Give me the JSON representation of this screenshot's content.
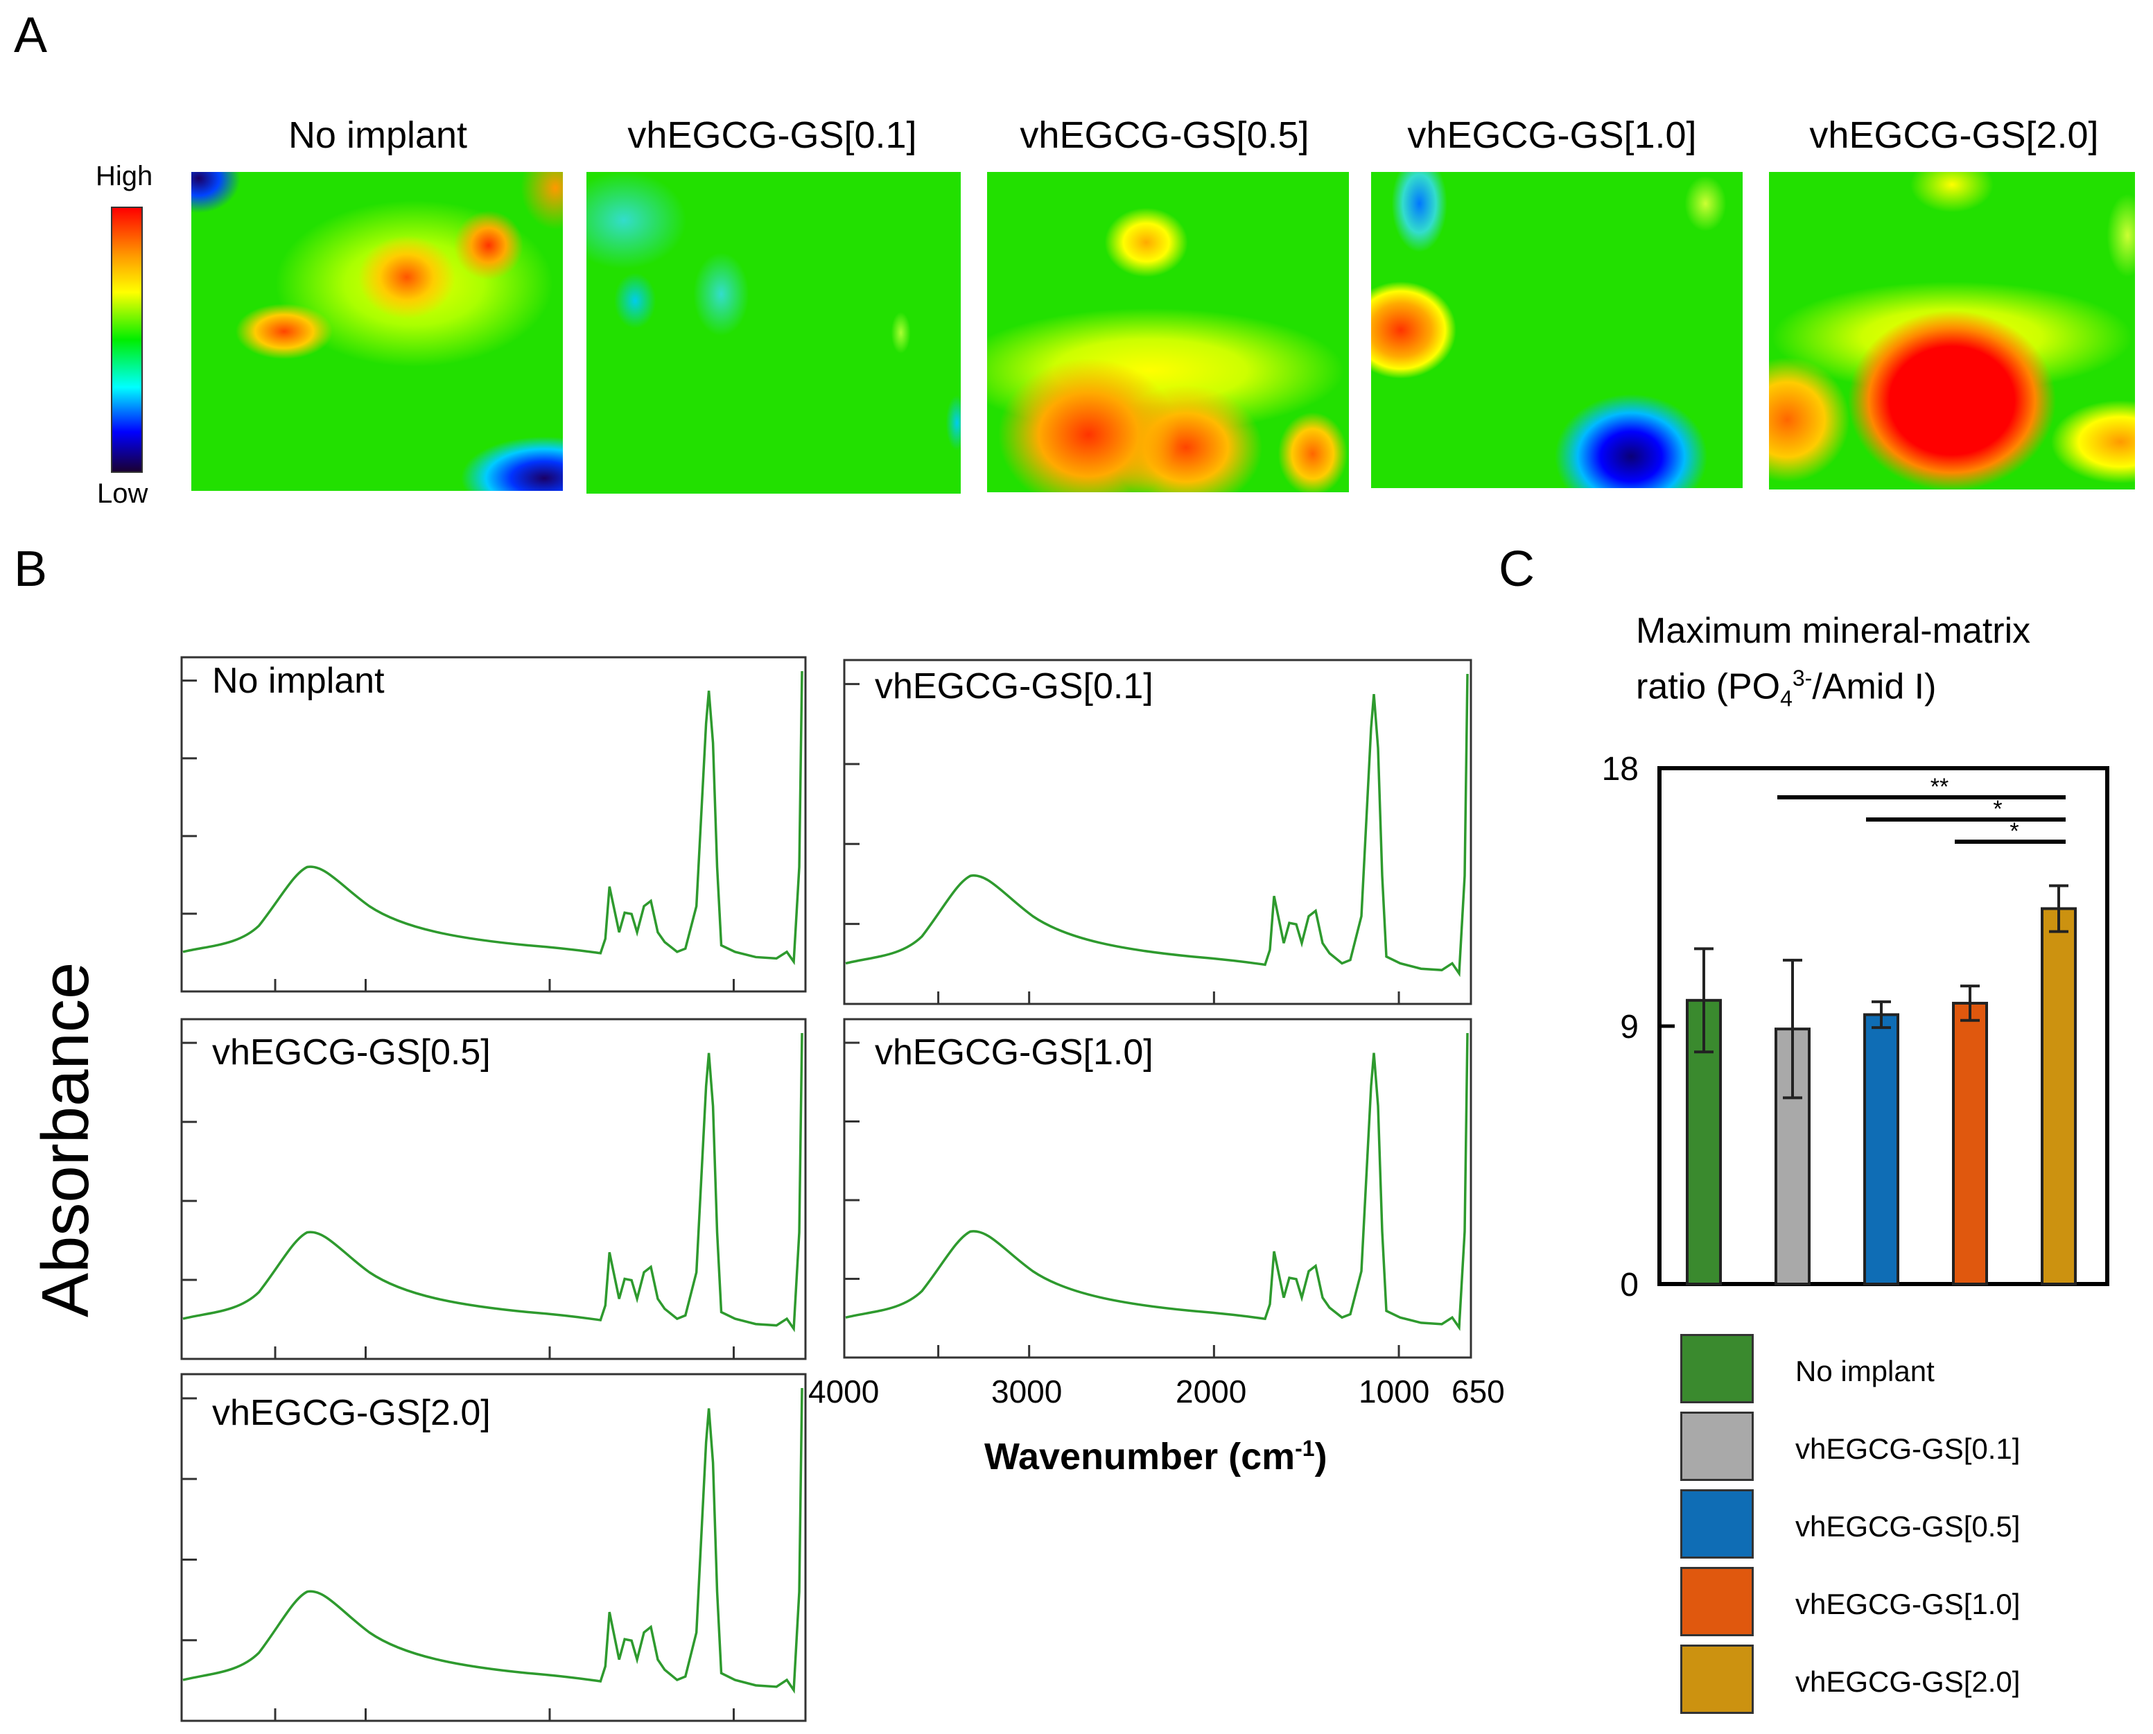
{
  "panels": {
    "a": "A",
    "b": "B",
    "c": "C"
  },
  "heatmaps": {
    "colorbar": {
      "high": "High",
      "low": "Low"
    },
    "titles": [
      "No implant",
      "vhEGCG-GS[0.1]",
      "vhEGCG-GS[0.5]",
      "vhEGCG-GS[1.0]",
      "vhEGCG-GS[2.0]"
    ]
  },
  "spectra": {
    "ylabel": "Absorbance",
    "xlabel": "Wavenumber (cm",
    "xlabel_sup": "-1",
    "xlabel_tail": ")",
    "xticks": [
      "4000",
      "3000",
      "2000",
      "1000",
      "650"
    ],
    "labels": [
      "No implant",
      "vhEGCG-GS[0.1]",
      "vhEGCG-GS[0.5]",
      "vhEGCG-GS[1.0]",
      "vhEGCG-GS[2.0]"
    ],
    "line_color": "#2e9a2e"
  },
  "chart_data": {
    "type": "bar",
    "title_line1": "Maximum mineral-matrix",
    "title_line2_pre": "ratio (PO",
    "title_sub": "4",
    "title_sup": "3-",
    "title_line2_post": "/Amid I)",
    "categories": [
      "No implant",
      "vhEGCG-GS[0.1]",
      "vhEGCG-GS[0.5]",
      "vhEGCG-GS[1.0]",
      "vhEGCG-GS[2.0]"
    ],
    "values": [
      9.9,
      8.9,
      9.4,
      9.8,
      13.1
    ],
    "errors": [
      1.8,
      2.4,
      0.45,
      0.6,
      0.8
    ],
    "colors": [
      "#3a8a2e",
      "#a9a9a9",
      "#0f6db5",
      "#e0580e",
      "#cc9210"
    ],
    "ylim": [
      0,
      18
    ],
    "yticks": [
      "0",
      "9",
      "18"
    ],
    "significance": [
      {
        "from": 1,
        "to": 4,
        "label": "**"
      },
      {
        "from": 2,
        "to": 4,
        "label": "*"
      },
      {
        "from": 3,
        "to": 4,
        "label": "*"
      }
    ],
    "legend": [
      "No implant",
      "vhEGCG-GS[0.1]",
      "vhEGCG-GS[0.5]",
      "vhEGCG-GS[1.0]",
      "vhEGCG-GS[2.0]"
    ]
  }
}
